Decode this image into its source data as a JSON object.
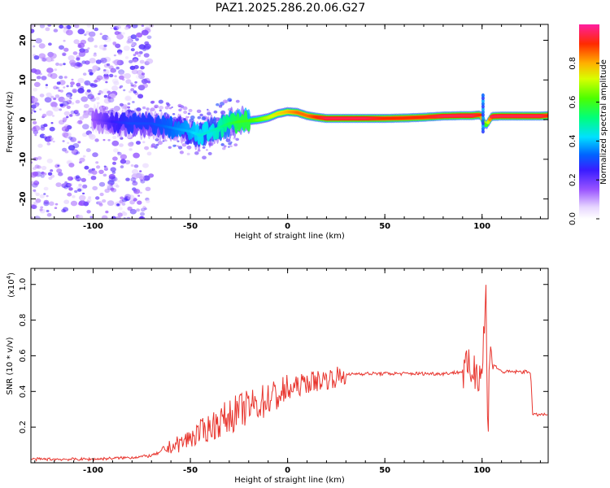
{
  "title": "PAZ1.2025.286.20.06.G27",
  "chart_data": [
    {
      "type": "heatmap",
      "title": "PAZ1.2025.286.20.06.G27",
      "xlabel": "Height of straight line (km)",
      "ylabel": "Frequency (Hz)",
      "xlim": [
        -132,
        134
      ],
      "ylim": [
        -25,
        24
      ],
      "xticks": [
        "-100",
        "-50",
        "0",
        "50",
        "100"
      ],
      "yticks": [
        "-20",
        "-10",
        "0",
        "10",
        "20"
      ],
      "colorbar": {
        "label": "Normalized spectral amplitude",
        "range": [
          0,
          1
        ],
        "ticks": [
          "0.0",
          "0.2",
          "0.4",
          "0.6",
          "0.8"
        ]
      },
      "ridge": {
        "x": [
          -100,
          -90,
          -80,
          -70,
          -60,
          -50,
          -45,
          -40,
          -35,
          -30,
          -25,
          -20,
          -15,
          -10,
          -5,
          0,
          5,
          10,
          15,
          20,
          30,
          40,
          50,
          60,
          70,
          80,
          90,
          95,
          99,
          102,
          105,
          110,
          120,
          130,
          134
        ],
        "freq": [
          0,
          -0.5,
          -1,
          -1,
          -2,
          -3,
          -4,
          -3,
          -2,
          -1,
          -0.5,
          -0.3,
          0,
          0.5,
          1.5,
          2,
          1.8,
          1,
          0.6,
          0.3,
          0.3,
          0.3,
          0.3,
          0.4,
          0.6,
          0.9,
          1.0,
          1.0,
          1.2,
          -1.5,
          0.8,
          0.9,
          0.9,
          0.9,
          1.0
        ],
        "amplitude": [
          0.15,
          0.25,
          0.3,
          0.3,
          0.35,
          0.4,
          0.45,
          0.45,
          0.5,
          0.55,
          0.6,
          0.6,
          0.65,
          0.7,
          0.75,
          0.8,
          0.85,
          0.85,
          0.9,
          0.95,
          0.95,
          0.95,
          0.9,
          0.9,
          0.9,
          0.95,
          0.95,
          0.95,
          0.9,
          0.6,
          0.95,
          0.95,
          0.95,
          0.95,
          0.9
        ]
      }
    },
    {
      "type": "line",
      "xlabel": "Height of straight line (km)",
      "ylabel": "SNR (10 * v/v)",
      "yscale_label": "(x10",
      "yscale_exp": "4",
      "xlim": [
        -132,
        134
      ],
      "ylim": [
        0,
        1.09
      ],
      "xticks": [
        "-100",
        "-50",
        "0",
        "50",
        "100"
      ],
      "yticks": [
        "0.2",
        "0.4",
        "0.6",
        "0.8",
        "1.0"
      ],
      "color": "#e8362f",
      "x": [
        -132,
        -120,
        -100,
        -80,
        -70,
        -65,
        -60,
        -55,
        -50,
        -45,
        -40,
        -35,
        -30,
        -25,
        -20,
        -15,
        -10,
        -5,
        0,
        5,
        10,
        15,
        20,
        25,
        30,
        35,
        40,
        50,
        60,
        70,
        80,
        90,
        95,
        100,
        102,
        103,
        104,
        106,
        110,
        115,
        120,
        125,
        126,
        130,
        134
      ],
      "y": [
        0.02,
        0.02,
        0.02,
        0.03,
        0.04,
        0.06,
        0.09,
        0.11,
        0.14,
        0.17,
        0.2,
        0.23,
        0.26,
        0.29,
        0.31,
        0.33,
        0.36,
        0.38,
        0.4,
        0.43,
        0.45,
        0.46,
        0.47,
        0.48,
        0.49,
        0.5,
        0.5,
        0.5,
        0.5,
        0.5,
        0.5,
        0.51,
        0.52,
        0.52,
        0.95,
        0.05,
        0.7,
        0.55,
        0.51,
        0.51,
        0.51,
        0.51,
        0.27,
        0.27,
        0.27
      ]
    }
  ]
}
